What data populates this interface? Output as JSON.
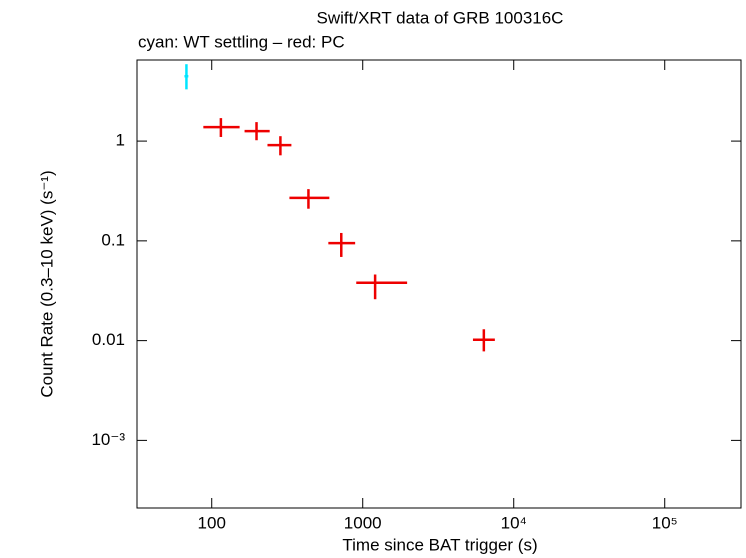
{
  "chart_data": {
    "type": "scatter",
    "title": "Swift/XRT data of GRB 100316C",
    "subtitle": "cyan: WT settling – red: PC",
    "xlabel": "Time since BAT trigger (s)",
    "ylabel": "Count Rate (0.3–10 keV) (s⁻¹)",
    "xscale": "log",
    "yscale": "log",
    "xlim": [
      32,
      320000
    ],
    "ylim": [
      0.00021,
      6.5
    ],
    "xticks": [
      100,
      1000,
      {
        "value": 10000,
        "label": "10⁴"
      },
      {
        "value": 100000,
        "label": "10⁵"
      }
    ],
    "yticks": [
      1,
      0.1,
      0.01,
      {
        "value": 0.001,
        "label": "10⁻³"
      }
    ],
    "series": [
      {
        "name": "WT settling",
        "color": "#00e5ff",
        "x": [
          68
        ],
        "xmin": [
          66
        ],
        "xmax": [
          70
        ],
        "values": [
          4.47
        ],
        "ymin": [
          3.3
        ],
        "ymax": [
          5.9
        ]
      },
      {
        "name": "PC",
        "color": "#ee0000",
        "x": [
          115,
          198,
          285,
          437,
          721,
          1208,
          6340
        ],
        "xmin": [
          88,
          165,
          234,
          327,
          592,
          906,
          5370
        ],
        "xmax": [
          153,
          242,
          337,
          601,
          891,
          1968,
          7500
        ],
        "values": [
          1.38,
          1.26,
          0.91,
          0.27,
          0.095,
          0.038,
          0.0102
        ],
        "ymin": [
          1.1,
          1.02,
          0.72,
          0.21,
          0.069,
          0.026,
          0.0078
        ],
        "ymax": [
          1.7,
          1.55,
          1.12,
          0.33,
          0.12,
          0.046,
          0.013
        ]
      }
    ]
  }
}
